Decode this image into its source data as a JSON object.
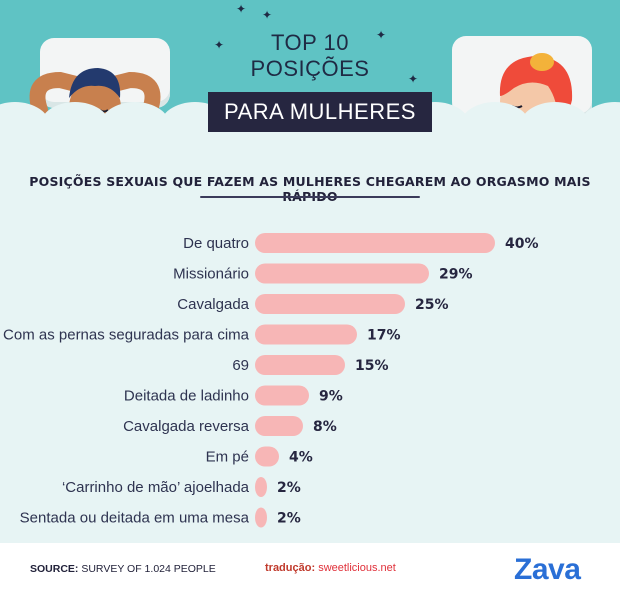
{
  "header": {
    "title_line1": "TOP 10",
    "title_line2": "POSIÇÕES",
    "title_highlight": "PARA MULHERES"
  },
  "chart_data": {
    "type": "bar",
    "orientation": "horizontal",
    "title": "POSIÇÕES SEXUAIS QUE FAZEM AS MULHERES CHEGAREM AO ORGASMO MAIS RÁPIDO",
    "categories": [
      "De quatro",
      "Missionário",
      "Cavalgada",
      "Com as pernas seguradas para cima",
      "69",
      "Deitada de ladinho",
      "Cavalgada reversa",
      "Em pé",
      "‘Carrinho de mão’ ajoelhada",
      "Sentada ou deitada em uma mesa"
    ],
    "values": [
      40,
      29,
      25,
      17,
      15,
      9,
      8,
      4,
      2,
      2
    ],
    "value_labels": [
      "40%",
      "29%",
      "25%",
      "17%",
      "15%",
      "9%",
      "8%",
      "4%",
      "2%",
      "2%"
    ],
    "xlim": [
      0,
      40
    ],
    "bar_color": "#f7b6b6",
    "grid": false,
    "legend": "none"
  },
  "footer": {
    "source_key": "SOURCE:",
    "source_value": "SURVEY OF 1.024 PEOPLE",
    "translation_key": "tradução:",
    "translation_value": "sweetlicious.net",
    "brand": "Zava"
  },
  "colors": {
    "header_bg": "#5fc3c4",
    "panel_bg": "#e7f4f4",
    "title_box": "#262640",
    "brand": "#2a6fd6"
  }
}
